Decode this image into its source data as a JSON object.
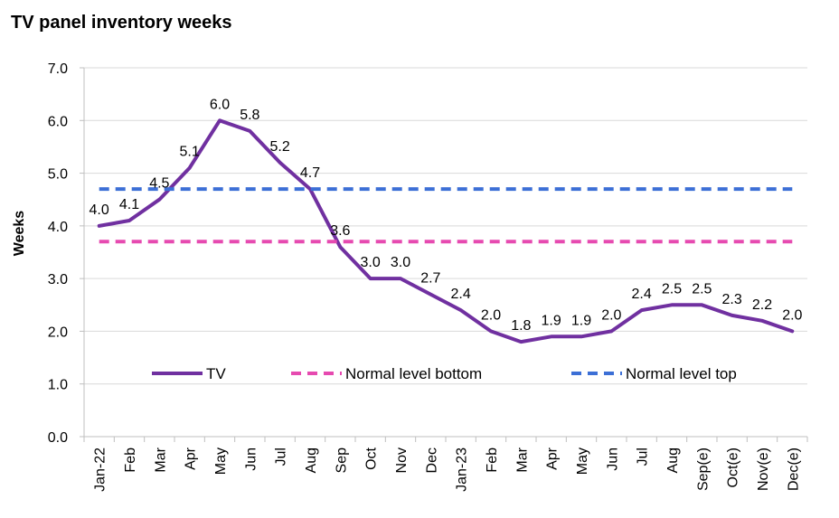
{
  "chart_data": {
    "type": "line",
    "title": "TV panel inventory weeks",
    "xlabel": "",
    "ylabel": "Weeks",
    "ylim": [
      0,
      7
    ],
    "y_ticks": [
      "0.0",
      "1.0",
      "2.0",
      "3.0",
      "4.0",
      "5.0",
      "6.0",
      "7.0"
    ],
    "grid": true,
    "legend": "inside-bottom",
    "categories": [
      "Jan-22",
      "Feb",
      "Mar",
      "Apr",
      "May",
      "Jun",
      "Jul",
      "Aug",
      "Sep",
      "Oct",
      "Nov",
      "Dec",
      "Jan-23",
      "Feb",
      "Mar",
      "Apr",
      "May",
      "Jun",
      "Jul",
      "Aug",
      "Sep(e)",
      "Oct(e)",
      "Nov(e)",
      "Dec(e)"
    ],
    "series": [
      {
        "name": "TV",
        "color": "#7030A0",
        "style": "solid",
        "values": [
          4.0,
          4.1,
          4.5,
          5.1,
          6.0,
          5.8,
          5.2,
          4.7,
          3.6,
          3.0,
          3.0,
          2.7,
          2.4,
          2.0,
          1.8,
          1.9,
          1.9,
          2.0,
          2.4,
          2.5,
          2.5,
          2.3,
          2.2,
          2.0
        ],
        "labels": [
          "4.0",
          "4.1",
          "4.5",
          "5.1",
          "6.0",
          "5.8",
          "5.2",
          "4.7",
          "3.6",
          "3.0",
          "3.0",
          "2.7",
          "2.4",
          "2.0",
          "1.8",
          "1.9",
          "1.9",
          "2.0",
          "2.4",
          "2.5",
          "2.5",
          "2.3",
          "2.2",
          "2.0"
        ]
      },
      {
        "name": "Normal level bottom",
        "color": "#E64AB0",
        "style": "dashed",
        "values": [
          3.7,
          3.7,
          3.7,
          3.7,
          3.7,
          3.7,
          3.7,
          3.7,
          3.7,
          3.7,
          3.7,
          3.7,
          3.7,
          3.7,
          3.7,
          3.7,
          3.7,
          3.7,
          3.7,
          3.7,
          3.7,
          3.7,
          3.7,
          3.7
        ]
      },
      {
        "name": "Normal level top",
        "color": "#3C6FD6",
        "style": "dashed",
        "values": [
          4.7,
          4.7,
          4.7,
          4.7,
          4.7,
          4.7,
          4.7,
          4.7,
          4.7,
          4.7,
          4.7,
          4.7,
          4.7,
          4.7,
          4.7,
          4.7,
          4.7,
          4.7,
          4.7,
          4.7,
          4.7,
          4.7,
          4.7,
          4.7
        ]
      }
    ]
  }
}
